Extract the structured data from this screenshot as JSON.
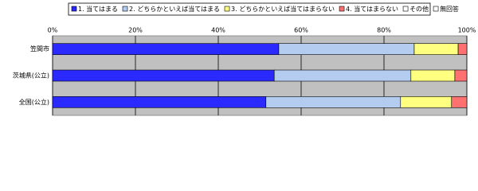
{
  "chart_data": {
    "type": "stacked-barh",
    "categories": [
      "笠間市",
      "茨城県(公立)",
      "全国(公立)"
    ],
    "series": [
      {
        "name": "1. 当てはまる",
        "color": "#2a2aff",
        "values": [
          54.6,
          53.5,
          51.5
        ]
      },
      {
        "name": "2. どちらかといえば当てはまる",
        "color": "#b4ccf0",
        "values": [
          32.7,
          33.0,
          32.5
        ]
      },
      {
        "name": "3. どちらかといえば当てはまらない",
        "color": "#ffff80",
        "values": [
          10.6,
          10.6,
          12.3
        ]
      },
      {
        "name": "4. 当てはまらない",
        "color": "#ff7070",
        "values": [
          2.1,
          2.9,
          3.7
        ]
      },
      {
        "name": "その他",
        "color": "#ffffff",
        "values": [
          0,
          0,
          0
        ]
      },
      {
        "name": "無回答",
        "color": "#ffffff",
        "values": [
          0,
          0,
          0
        ]
      }
    ],
    "xlim": [
      0,
      100
    ],
    "xticks": [
      {
        "value": 0,
        "label": "0%"
      },
      {
        "value": 20,
        "label": "20%"
      },
      {
        "value": 40,
        "label": "40%"
      },
      {
        "value": 60,
        "label": "60%"
      },
      {
        "value": 80,
        "label": "80%"
      },
      {
        "value": 100,
        "label": "100%"
      }
    ],
    "grid": true
  }
}
